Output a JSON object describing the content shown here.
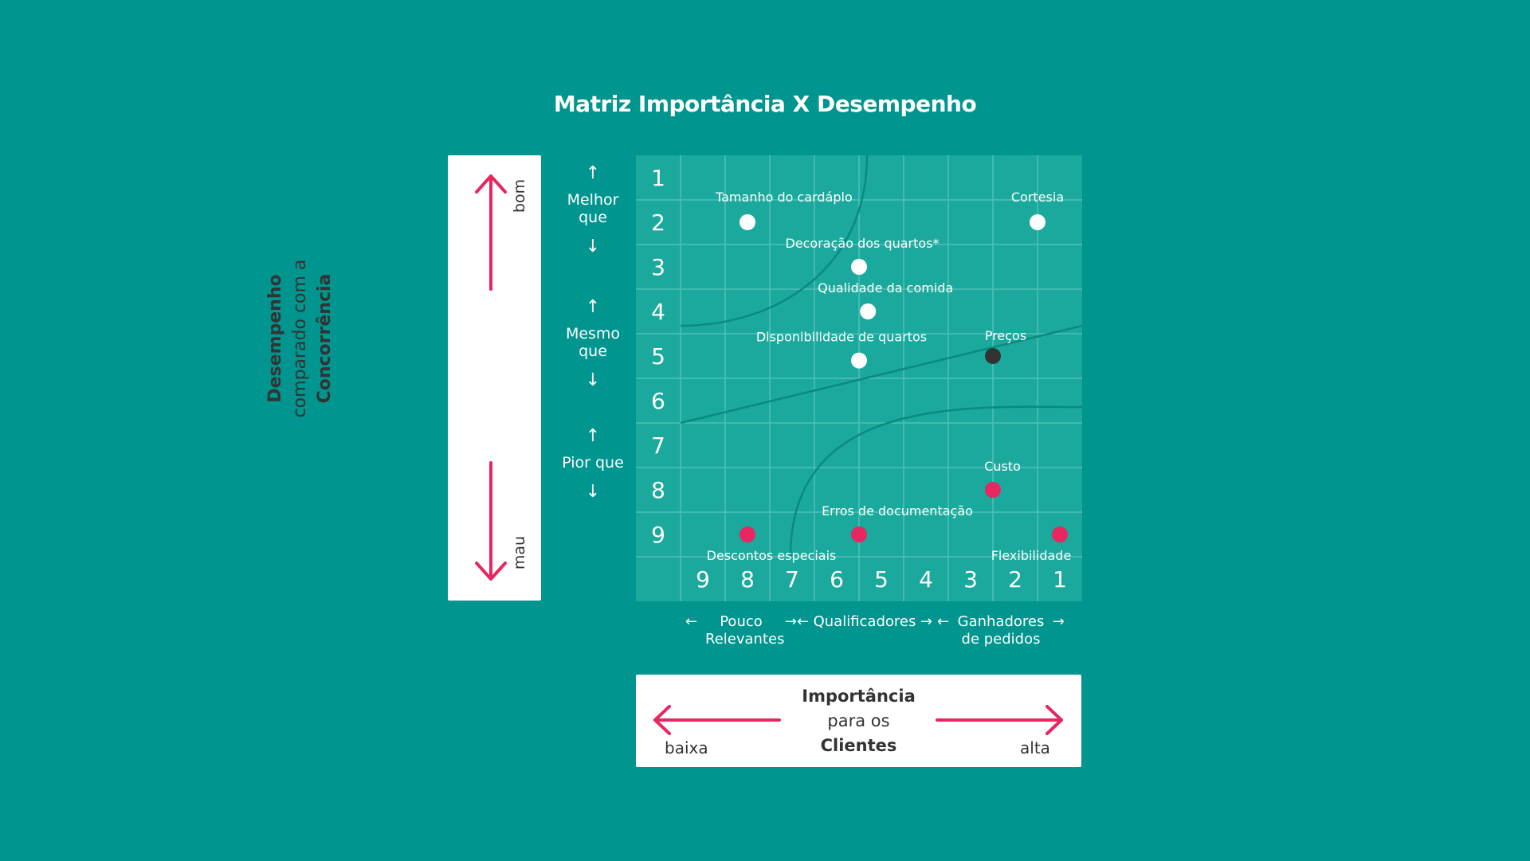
{
  "title": "Matriz Importância X Desempenho",
  "y_axis_card": {
    "line1": "Desempenho",
    "line2": "comparado com a",
    "line3": "Concorrência",
    "top": "bom",
    "bottom": "mau",
    "arrow_color": "#e8265f"
  },
  "y_bands": [
    {
      "label": "Melhor que"
    },
    {
      "label": "Mesmo que"
    },
    {
      "label": "Pior que"
    }
  ],
  "x_categories": [
    {
      "label": "Pouco Relevantes"
    },
    {
      "label": "Qualificadores"
    },
    {
      "label": "Ganhadores de pedidos"
    }
  ],
  "x_axis_card": {
    "line1": "Importância",
    "line2": "para os",
    "line3": "Clientes",
    "left": "baixa",
    "right": "alta"
  },
  "colors": {
    "background": "#00958e",
    "plot": "#1aa99c",
    "good": "#ffffff",
    "neutral": "#333333",
    "bad": "#e8265f"
  },
  "chart_data": {
    "type": "scatter",
    "title": "Matriz Importância X Desempenho",
    "xlabel": "Importância para os Clientes",
    "ylabel": "Desempenho comparado com a Concorrência",
    "x_ticks": [
      "9",
      "8",
      "7",
      "6",
      "5",
      "4",
      "3",
      "2",
      "1"
    ],
    "y_ticks": [
      "1",
      "2",
      "3",
      "4",
      "5",
      "6",
      "7",
      "8",
      "9"
    ],
    "xlim": [
      9,
      1
    ],
    "ylim": [
      1,
      9
    ],
    "grid": true,
    "points": [
      {
        "label": "Tamanho do cardáplo",
        "x": 8,
        "y": 2,
        "status": "good"
      },
      {
        "label": "Cortesia",
        "x": 1.5,
        "y": 2,
        "status": "good"
      },
      {
        "label": "Decoração dos quartos*",
        "x": 5.5,
        "y": 3,
        "status": "good"
      },
      {
        "label": "Qualidade da comida",
        "x": 5.3,
        "y": 4,
        "status": "good"
      },
      {
        "label": "Disponibilidade de quartos",
        "x": 5.5,
        "y": 5.1,
        "status": "good"
      },
      {
        "label": "Preços",
        "x": 2.5,
        "y": 5,
        "status": "neutral"
      },
      {
        "label": "Custo",
        "x": 2.5,
        "y": 8,
        "status": "bad"
      },
      {
        "label": "Erros de documentação",
        "x": 5.5,
        "y": 9,
        "status": "bad"
      },
      {
        "label": "Descontos especiais",
        "x": 8,
        "y": 9,
        "status": "bad"
      },
      {
        "label": "Flexibilidade",
        "x": 1,
        "y": 9,
        "status": "bad"
      }
    ]
  }
}
